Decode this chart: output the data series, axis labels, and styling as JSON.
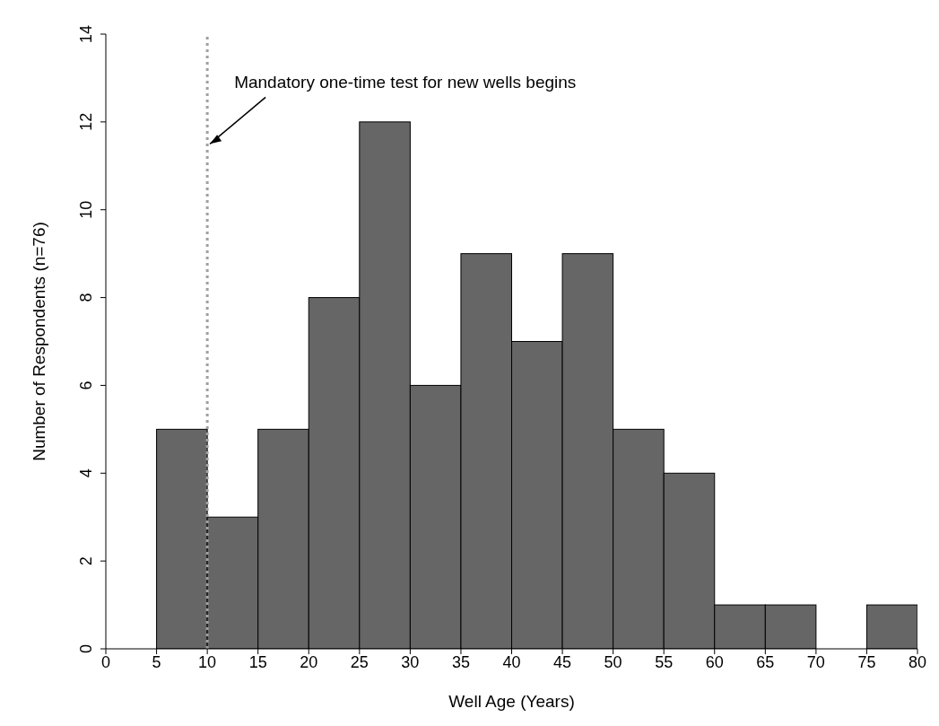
{
  "chart_data": {
    "type": "histogram",
    "xlabel": "Well Age (Years)",
    "ylabel": "Number of Respondents (n=76)",
    "bins": [
      0,
      5,
      10,
      15,
      20,
      25,
      30,
      35,
      40,
      45,
      50,
      55,
      60,
      65,
      70,
      75,
      80
    ],
    "values": [
      0,
      5,
      3,
      5,
      8,
      12,
      6,
      9,
      7,
      9,
      5,
      4,
      1,
      1,
      0,
      1
    ],
    "color": "#666666",
    "xlim": [
      0,
      80
    ],
    "xticks": [
      0,
      5,
      10,
      15,
      20,
      25,
      30,
      35,
      40,
      45,
      50,
      55,
      60,
      65,
      70,
      75,
      80
    ],
    "ylim": [
      0,
      14
    ],
    "yticks": [
      0,
      2,
      4,
      6,
      8,
      10,
      12,
      14
    ],
    "ref_lines": [
      {
        "axis": "x",
        "value": 10,
        "color": "#a0a0a0",
        "line_style": "dotted"
      }
    ],
    "annotations": [
      {
        "text": "Mandatory one-time test for new wells begins",
        "x": 10,
        "y": 11.5
      }
    ]
  }
}
